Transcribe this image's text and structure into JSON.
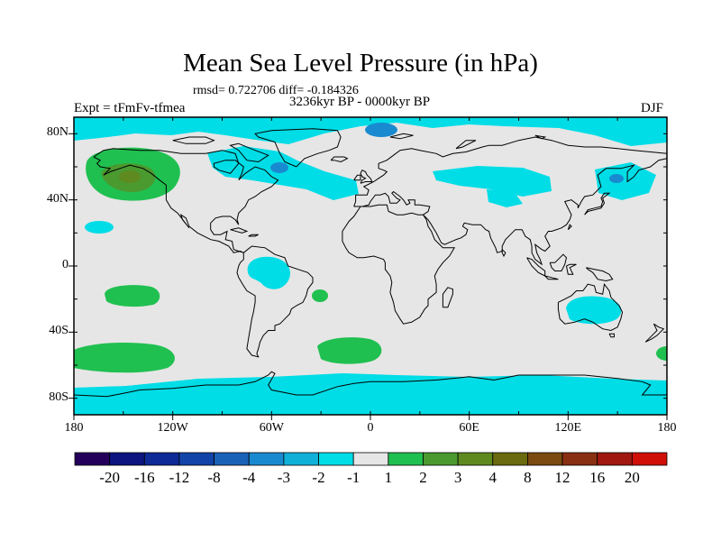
{
  "title": "Mean Sea Level Pressure (in hPa)",
  "stats_line": "rmsd= 0.722706 diff= -0.184326",
  "period": "3236kyr BP - 0000kyr BP",
  "experiment": "Expt = tFmFv-tfmea",
  "season": "DJF",
  "map": {
    "background_color": "#e6e6e6",
    "lat_ticks": [
      {
        "lat": 80,
        "label": "80N"
      },
      {
        "lat": 40,
        "label": "40N"
      },
      {
        "lat": 0,
        "label": "0"
      },
      {
        "lat": -40,
        "label": "40S"
      },
      {
        "lat": -80,
        "label": "80S"
      }
    ],
    "lon_ticks": [
      {
        "lon": -180,
        "label": "180"
      },
      {
        "lon": -120,
        "label": "120W"
      },
      {
        "lon": -60,
        "label": "60W"
      },
      {
        "lon": 0,
        "label": "0"
      },
      {
        "lon": 60,
        "label": "60E"
      },
      {
        "lon": 120,
        "label": "120E"
      },
      {
        "lon": 180,
        "label": "180"
      }
    ]
  },
  "colorbar": {
    "colors": [
      "#24005a",
      "#0c1580",
      "#0e2a95",
      "#1244a8",
      "#1a62b8",
      "#1a8ad0",
      "#10b0d8",
      "#00dde6",
      "#e6e6e6",
      "#20c050",
      "#4a9a30",
      "#5e8a20",
      "#6a6a10",
      "#7a4a10",
      "#8a3012",
      "#a01810",
      "#d01008"
    ],
    "labels": [
      "-20",
      "-16",
      "-12",
      "-8",
      "-4",
      "-3",
      "-2",
      "-1",
      "1",
      "2",
      "3",
      "4",
      "8",
      "12",
      "16",
      "20"
    ]
  }
}
